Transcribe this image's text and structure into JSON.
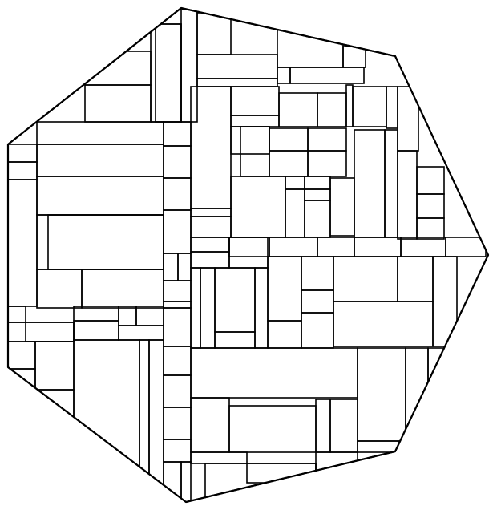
{
  "diagram": {
    "kind": "rectangular-tiling-inside-polygon",
    "colors": {
      "background": "#ffffff",
      "stroke": "#000000"
    }
  }
}
